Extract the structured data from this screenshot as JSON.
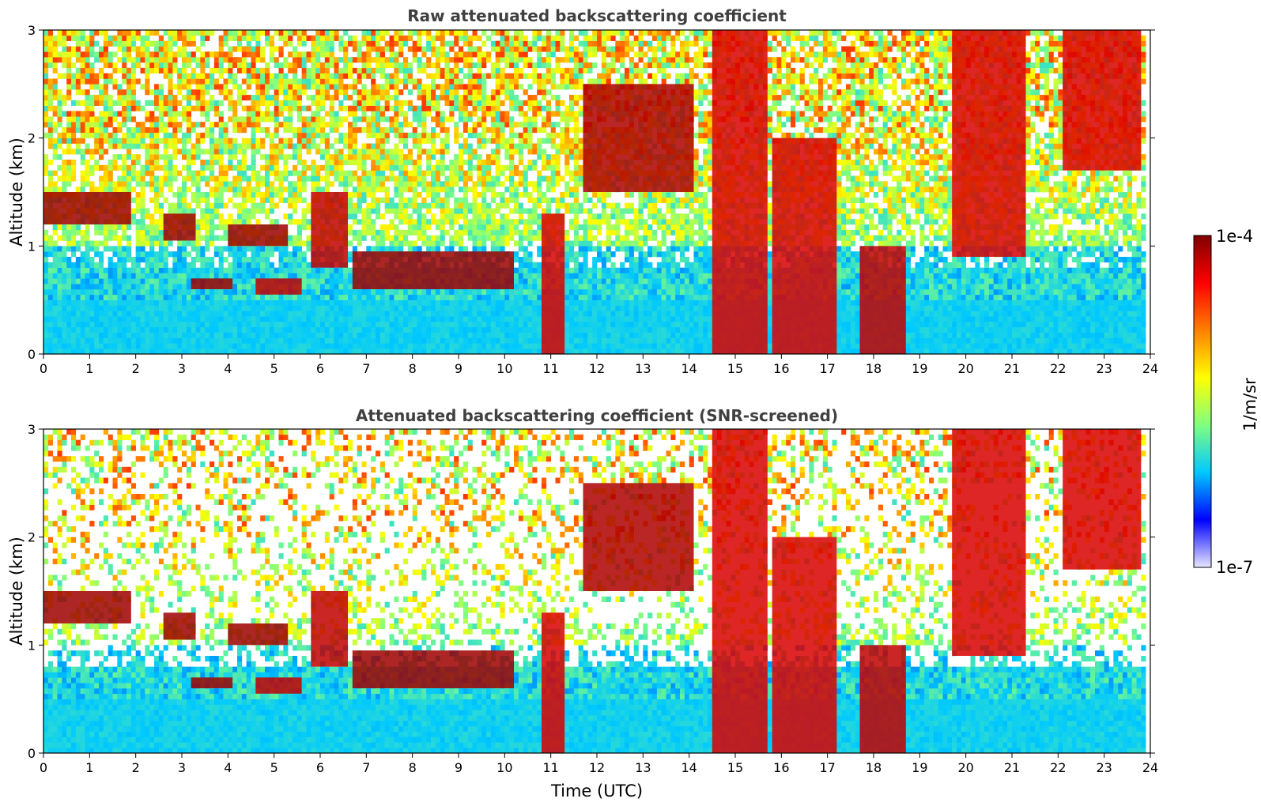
{
  "chart_data": [
    {
      "type": "heatmap",
      "title": "Raw attenuated backscattering coefficient",
      "xlabel": "",
      "ylabel": "Altitude (km)",
      "xlim": [
        0,
        24
      ],
      "ylim": [
        0,
        3
      ],
      "x_ticks": [
        "0",
        "1",
        "2",
        "3",
        "4",
        "5",
        "6",
        "7",
        "8",
        "9",
        "10",
        "11",
        "12",
        "13",
        "14",
        "15",
        "16",
        "17",
        "18",
        "19",
        "20",
        "21",
        "22",
        "23",
        "24"
      ],
      "y_ticks": [
        "0",
        "1",
        "2",
        "3"
      ],
      "screened": false,
      "layers": [
        {
          "x": [
            0,
            1.9
          ],
          "y": [
            1.2,
            1.5
          ],
          "value": 8e-05
        },
        {
          "x": [
            2.6,
            3.3
          ],
          "y": [
            1.05,
            1.3
          ],
          "value": 8e-05
        },
        {
          "x": [
            3.2,
            4.1
          ],
          "y": [
            0.6,
            0.7
          ],
          "value": 8e-05
        },
        {
          "x": [
            4.0,
            5.3
          ],
          "y": [
            1.0,
            1.2
          ],
          "value": 8e-05
        },
        {
          "x": [
            4.6,
            5.6
          ],
          "y": [
            0.55,
            0.7
          ],
          "value": 6e-05
        },
        {
          "x": [
            5.8,
            6.6
          ],
          "y": [
            0.8,
            1.5
          ],
          "value": 6e-05
        },
        {
          "x": [
            6.7,
            10.2
          ],
          "y": [
            0.6,
            0.95
          ],
          "value": 8e-05
        },
        {
          "x": [
            10.8,
            11.3
          ],
          "y": [
            0.0,
            1.3
          ],
          "value": 5e-05
        },
        {
          "x": [
            11.7,
            14.1
          ],
          "y": [
            1.5,
            2.5
          ],
          "value": 7e-05
        },
        {
          "x": [
            14.5,
            15.7
          ],
          "y": [
            0.0,
            3.0
          ],
          "value": 5e-05
        },
        {
          "x": [
            15.8,
            17.2
          ],
          "y": [
            0.0,
            2.0
          ],
          "value": 5e-05
        },
        {
          "x": [
            17.7,
            18.7
          ],
          "y": [
            0.0,
            1.0
          ],
          "value": 6e-05
        },
        {
          "x": [
            19.7,
            21.3
          ],
          "y": [
            0.9,
            3.0
          ],
          "value": 5e-05
        },
        {
          "x": [
            22.1,
            23.8
          ],
          "y": [
            1.7,
            3.0
          ],
          "value": 5e-05
        }
      ],
      "noise_floor": 1e-07
    },
    {
      "type": "heatmap",
      "title": "Attenuated backscattering coefficient (SNR-screened)",
      "xlabel": "Time (UTC)",
      "ylabel": "Altitude (km)",
      "xlim": [
        0,
        24
      ],
      "ylim": [
        0,
        3
      ],
      "x_ticks": [
        "0",
        "1",
        "2",
        "3",
        "4",
        "5",
        "6",
        "7",
        "8",
        "9",
        "10",
        "11",
        "12",
        "13",
        "14",
        "15",
        "16",
        "17",
        "18",
        "19",
        "20",
        "21",
        "22",
        "23",
        "24"
      ],
      "y_ticks": [
        "0",
        "1",
        "2",
        "3"
      ],
      "screened": true,
      "noise_floor": 1e-07
    }
  ],
  "colorbar": {
    "label": "1/m/sr",
    "max_label": "1e-4",
    "min_label": "1e-7",
    "colormap": "jet",
    "colors": [
      "#e6e6ff",
      "#0000ff",
      "#00c8ff",
      "#80ff80",
      "#ffff00",
      "#ff8000",
      "#ff0000",
      "#800000"
    ]
  }
}
